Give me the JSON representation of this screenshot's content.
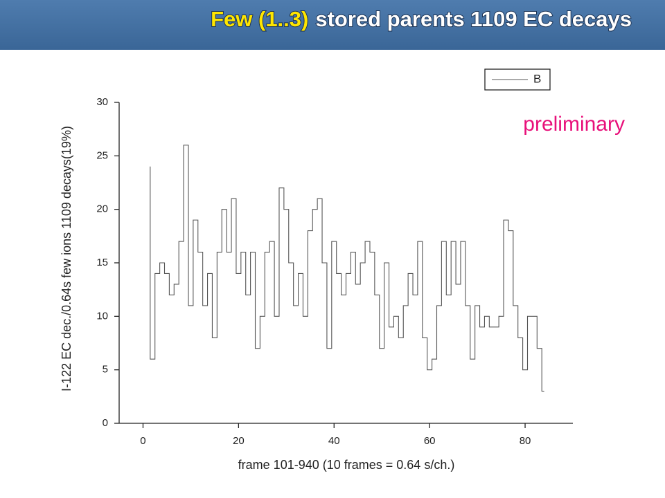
{
  "chart_data": {
    "type": "step",
    "title_highlight": "Few (1..3)",
    "title": "stored parents 1109 EC decays",
    "annotation": "preliminary",
    "x_label": "frame 101-940 (10 frames = 0.64 s/ch.)",
    "y_label": "I-122 EC dec./0.64s few ions 1109 decays(19%)",
    "x": [
      1,
      2,
      3,
      4,
      5,
      6,
      7,
      8,
      9,
      10,
      11,
      12,
      13,
      14,
      15,
      16,
      17,
      18,
      19,
      20,
      21,
      22,
      23,
      24,
      25,
      26,
      27,
      28,
      29,
      30,
      31,
      32,
      33,
      34,
      35,
      36,
      37,
      38,
      39,
      40,
      41,
      42,
      43,
      44,
      45,
      46,
      47,
      48,
      49,
      50,
      51,
      52,
      53,
      54,
      55,
      56,
      57,
      58,
      59,
      60,
      61,
      62,
      63,
      64,
      65,
      66,
      67,
      68,
      69,
      70,
      71,
      72,
      73,
      74,
      75,
      76,
      77,
      78,
      79,
      80,
      81,
      82,
      83,
      84
    ],
    "series": [
      {
        "name": "B",
        "color": "#555555",
        "values": [
          24,
          6,
          14,
          15,
          14,
          12,
          13,
          17,
          26,
          11,
          19,
          16,
          11,
          14,
          8,
          16,
          20,
          16,
          21,
          14,
          16,
          12,
          16,
          7,
          10,
          16,
          17,
          10,
          22,
          20,
          15,
          11,
          14,
          10,
          18,
          20,
          21,
          15,
          7,
          17,
          14,
          12,
          14,
          16,
          13,
          15,
          17,
          16,
          12,
          7,
          15,
          9,
          10,
          8,
          11,
          14,
          12,
          17,
          8,
          5,
          6,
          11,
          17,
          12,
          17,
          13,
          17,
          11,
          6,
          11,
          9,
          10,
          9,
          9,
          10,
          19,
          18,
          11,
          8,
          5,
          10,
          10,
          7,
          3
        ]
      }
    ],
    "xlim": [
      -5,
      90
    ],
    "xticks": [
      0,
      20,
      40,
      60,
      80
    ],
    "ylim": [
      0,
      30
    ],
    "yticks": [
      0,
      5,
      10,
      15,
      20,
      25,
      30
    ],
    "legend": "top-right"
  }
}
